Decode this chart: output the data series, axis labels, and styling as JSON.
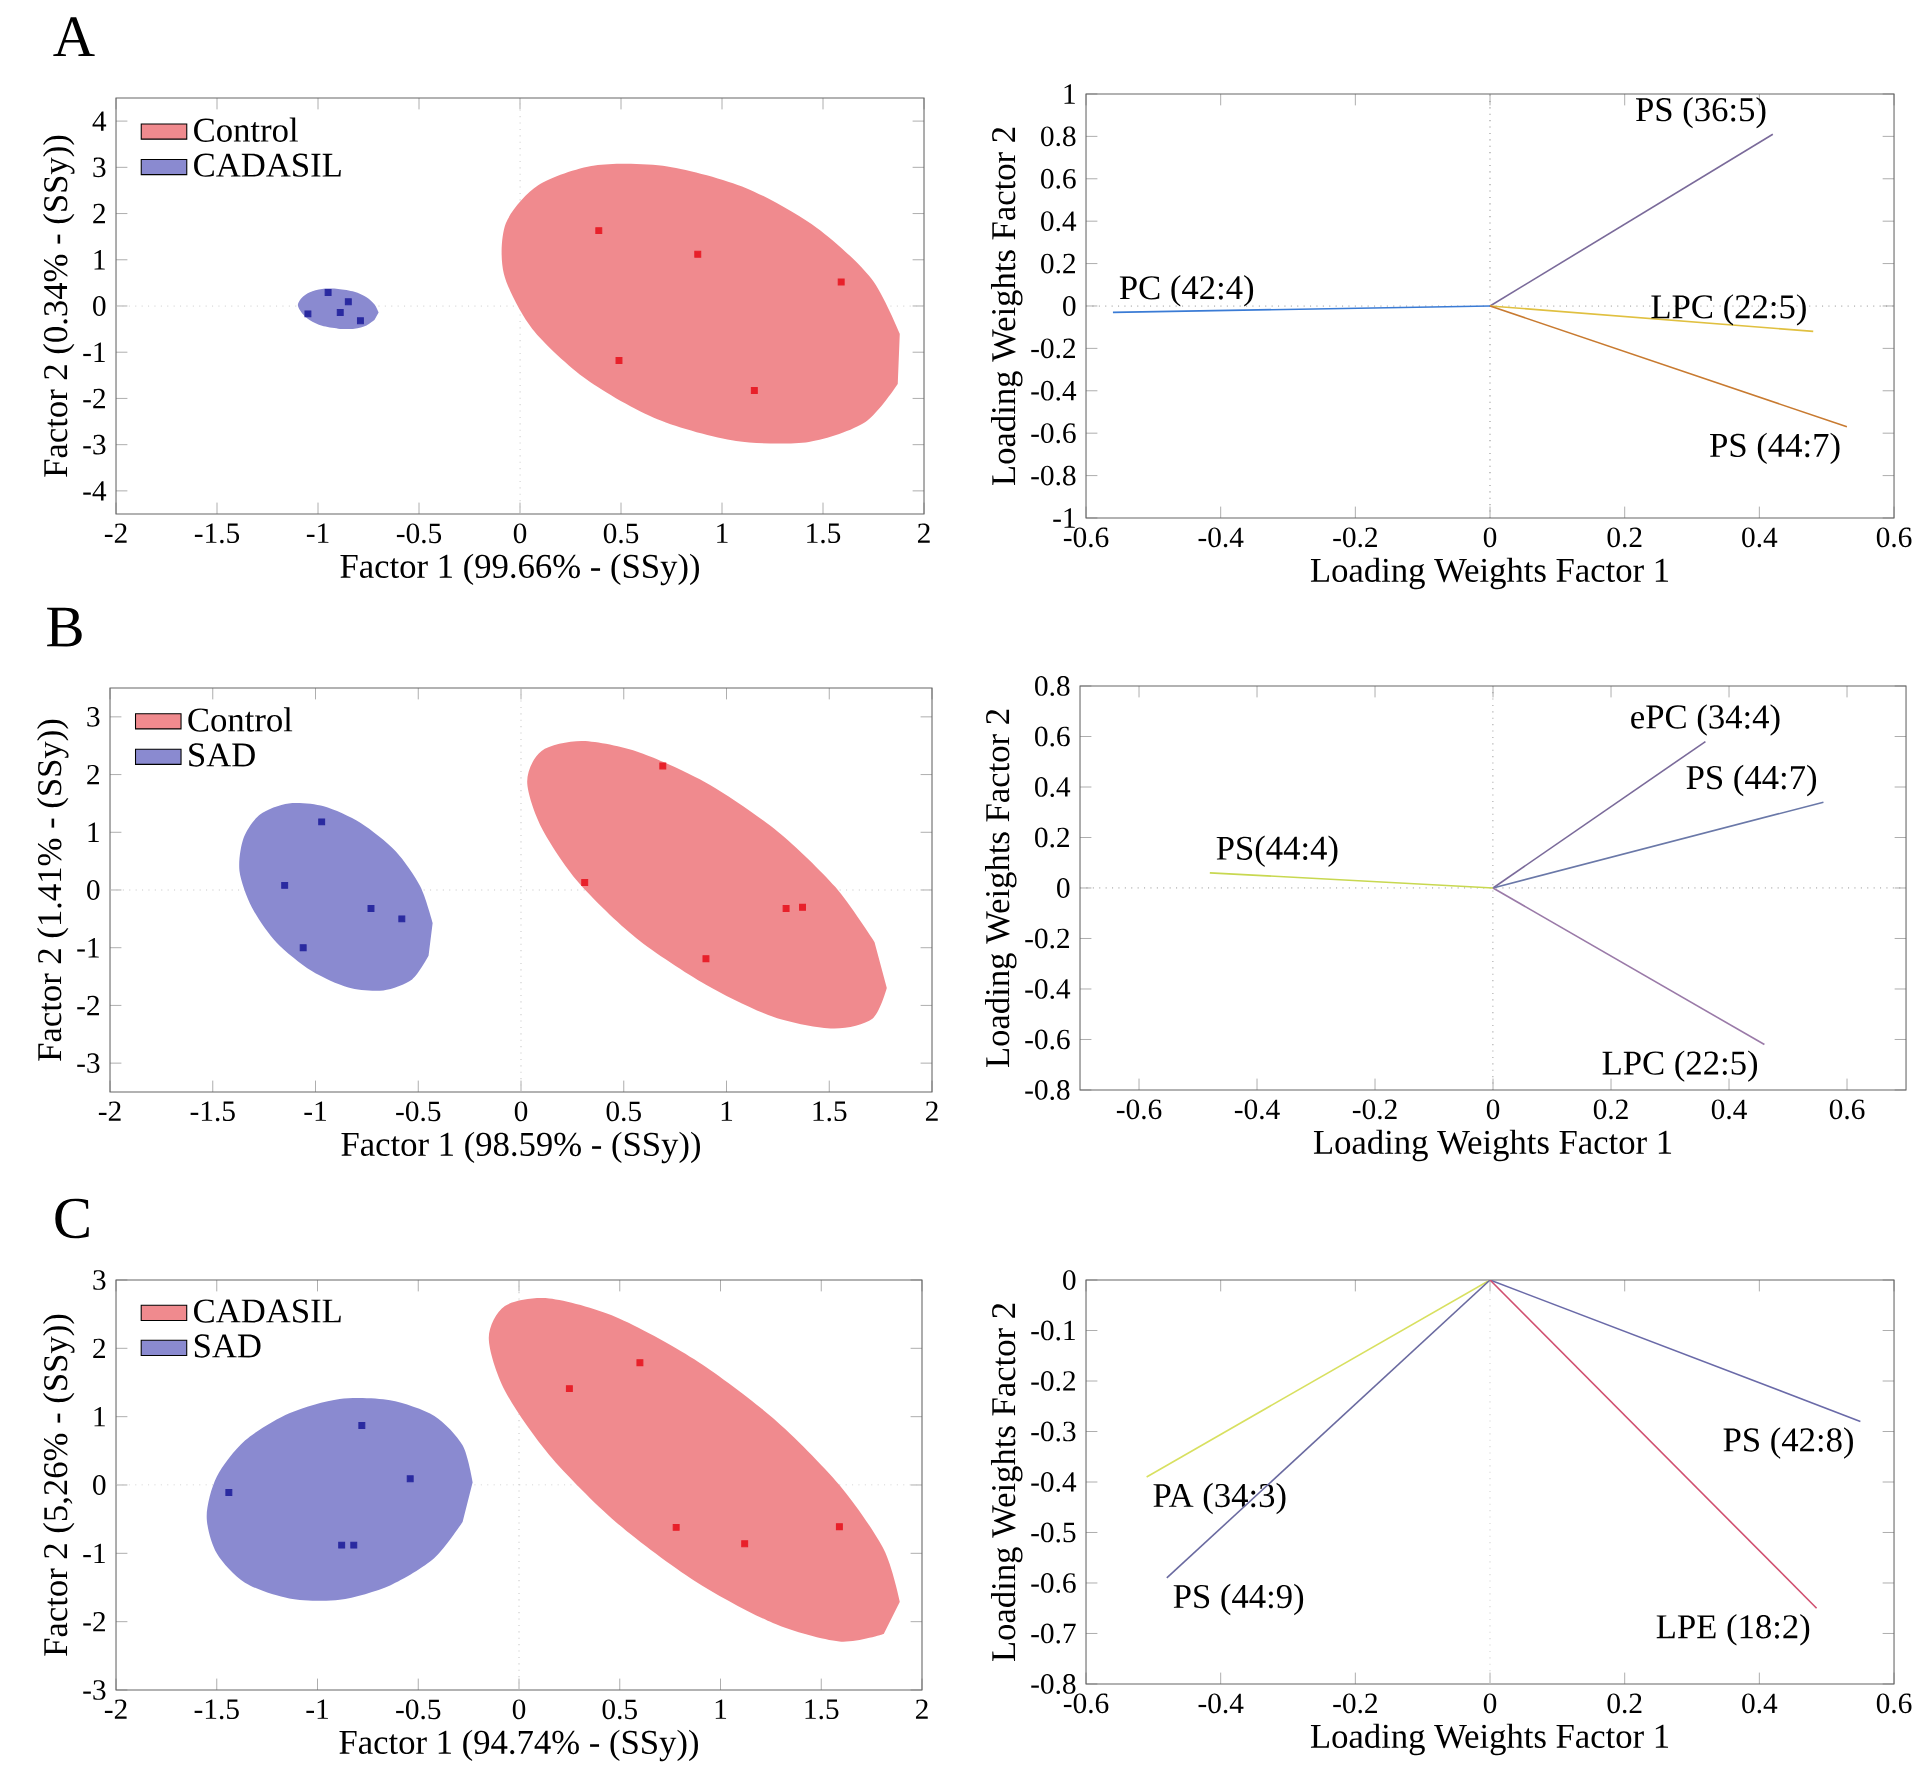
{
  "chart_data": [
    {
      "type": "scatter",
      "title": "A",
      "xlabel": "Factor 1 (99.66% - (SSy))",
      "ylabel": "Factor 2 (0.34% - (SSy))",
      "xlim": [
        -2,
        2
      ],
      "ylim": [
        -4.5,
        4.5
      ],
      "xticks": [
        -2,
        -1.5,
        -1,
        -0.5,
        0,
        0.5,
        1,
        1.5,
        2
      ],
      "yticks": [
        -4,
        -3,
        -2,
        -1,
        0,
        1,
        2,
        3,
        4
      ],
      "legend": "top left",
      "ref_lines": [
        {
          "axis": "x",
          "value": 0,
          "color": "#c8c8c8",
          "line_style": "dotted"
        },
        {
          "axis": "y",
          "value": 0,
          "color": "#c8c8c8",
          "line_style": "dotted"
        }
      ],
      "series": [
        {
          "type": "area",
          "name": "Control",
          "color": "#f08a8e",
          "x": [
            1.88,
            1.74,
            1.47,
            1.12,
            0.73,
            0.37,
            0.09,
            -0.07,
            -0.08,
            0.06,
            0.33,
            0.68,
            1.07,
            1.43,
            1.71,
            1.87
          ],
          "values": [
            -0.6,
            0.59,
            1.69,
            2.55,
            3.02,
            3.04,
            2.61,
            1.79,
            0.7,
            -0.49,
            -1.59,
            -2.45,
            -2.92,
            -2.94,
            -2.51,
            -1.69
          ]
        },
        {
          "type": "area",
          "name": "CADASIL",
          "color": "#8a8ad0",
          "x": [
            -0.7,
            -0.72,
            -0.76,
            -0.82,
            -0.9,
            -0.98,
            -1.04,
            -1.08,
            -1.1,
            -1.08,
            -1.04,
            -0.98,
            -0.9,
            -0.82,
            -0.76,
            -0.72
          ],
          "values": [
            -0.14,
            0.03,
            0.19,
            0.31,
            0.37,
            0.37,
            0.3,
            0.18,
            0.02,
            -0.15,
            -0.31,
            -0.43,
            -0.49,
            -0.49,
            -0.42,
            -0.3
          ]
        },
        {
          "type": "scatter",
          "marker": "square",
          "color": "#e8202a",
          "x": [
            0.39,
            0.88,
            1.59,
            0.49,
            1.16
          ],
          "values": [
            1.63,
            1.12,
            0.52,
            -1.18,
            -1.83
          ]
        },
        {
          "type": "scatter",
          "marker": "square",
          "color": "#2a2aa0",
          "x": [
            -0.95,
            -0.85,
            -1.05,
            -0.89,
            -0.79
          ],
          "values": [
            0.29,
            0.09,
            -0.17,
            -0.14,
            -0.32
          ]
        }
      ]
    },
    {
      "type": "line",
      "xlabel": "Loading Weights Factor 1",
      "ylabel": "Loading Weights Factor 2",
      "xlim": [
        -0.6,
        0.6
      ],
      "ylim": [
        -1,
        1
      ],
      "xticks": [
        -0.6,
        -0.4,
        -0.2,
        0,
        0.2,
        0.4,
        0.6
      ],
      "yticks": [
        -1,
        -0.8,
        -0.6,
        -0.4,
        -0.2,
        0,
        0.2,
        0.4,
        0.6,
        0.8,
        1
      ],
      "marker": "none",
      "line_style": "solid",
      "ref_lines": [
        {
          "axis": "x",
          "value": 0,
          "color": "#8a8a8a",
          "line_style": "dotted"
        },
        {
          "axis": "y",
          "value": 0,
          "color": "#8a8a8a",
          "line_style": "dotted"
        }
      ],
      "series": [
        {
          "name": "PC (42:4)",
          "color": "#3a7bd5",
          "x": [
            0,
            -0.56
          ],
          "values": [
            0,
            -0.03
          ]
        },
        {
          "name": "PS (36:5)",
          "color": "#7a6a9a",
          "x": [
            0,
            0.42
          ],
          "values": [
            0,
            0.81
          ]
        },
        {
          "name": "LPC (22:5)",
          "color": "#e0c040",
          "x": [
            0,
            0.48
          ],
          "values": [
            0,
            -0.12
          ]
        },
        {
          "name": "PS (44:7)",
          "color": "#c87a30",
          "x": [
            0,
            0.53
          ],
          "values": [
            0,
            -0.57
          ]
        }
      ]
    },
    {
      "type": "scatter",
      "title": "B",
      "xlabel": "Factor 1 (98.59% - (SSy))",
      "ylabel": "Factor 2 (1.41% - (SSy))",
      "xlim": [
        -2,
        2
      ],
      "ylim": [
        -3.5,
        3.5
      ],
      "xticks": [
        -2,
        -1.5,
        -1,
        -0.5,
        0,
        0.5,
        1,
        1.5,
        2
      ],
      "yticks": [
        -3,
        -2,
        -1,
        0,
        1,
        2,
        3
      ],
      "legend": "top left",
      "ref_lines": [
        {
          "axis": "x",
          "value": 0,
          "color": "#c8c8c8",
          "line_style": "dotted"
        },
        {
          "axis": "y",
          "value": 0,
          "color": "#c8c8c8",
          "line_style": "dotted"
        }
      ],
      "series": [
        {
          "type": "area",
          "name": "Control",
          "color": "#f08a8e",
          "x": [
            1.72,
            1.53,
            1.25,
            0.92,
            0.58,
            0.3,
            0.1,
            0.03,
            0.1,
            0.28,
            0.56,
            0.9,
            1.23,
            1.52,
            1.71,
            1.78
          ],
          "values": [
            -0.9,
            0.05,
            1.01,
            1.82,
            2.38,
            2.58,
            2.41,
            1.88,
            1.08,
            0.13,
            -0.83,
            -1.64,
            -2.2,
            -2.4,
            -2.23,
            -1.7
          ]
        },
        {
          "type": "area",
          "name": "SAD",
          "color": "#8a8ad0",
          "x": [
            -0.43,
            -0.49,
            -0.61,
            -0.78,
            -0.96,
            -1.13,
            -1.27,
            -1.35,
            -1.37,
            -1.31,
            -1.19,
            -1.02,
            -0.84,
            -0.67,
            -0.53,
            -0.45
          ],
          "values": [
            -0.57,
            0.06,
            0.67,
            1.16,
            1.45,
            1.5,
            1.31,
            0.9,
            0.33,
            -0.3,
            -0.91,
            -1.4,
            -1.69,
            -1.74,
            -1.55,
            -1.14
          ]
        },
        {
          "type": "scatter",
          "marker": "square",
          "color": "#e8202a",
          "x": [
            0.69,
            0.31,
            1.29,
            1.37,
            0.9
          ],
          "values": [
            2.15,
            0.13,
            -0.32,
            -0.3,
            -1.19
          ]
        },
        {
          "type": "scatter",
          "marker": "square",
          "color": "#2a2aa0",
          "x": [
            -0.97,
            -1.15,
            -0.73,
            -0.58,
            -1.06
          ],
          "values": [
            1.18,
            0.08,
            -0.32,
            -0.5,
            -1.0
          ]
        }
      ]
    },
    {
      "type": "line",
      "xlabel": "Loading Weights Factor 1",
      "ylabel": "Loading Weights Factor 2",
      "xlim": [
        -0.7,
        0.7
      ],
      "ylim": [
        -0.8,
        0.8
      ],
      "xticks": [
        -0.6,
        -0.4,
        -0.2,
        0,
        0.2,
        0.4,
        0.6
      ],
      "yticks": [
        -0.8,
        -0.6,
        -0.4,
        -0.2,
        0,
        0.2,
        0.4,
        0.6,
        0.8
      ],
      "marker": "none",
      "line_style": "solid",
      "ref_lines": [
        {
          "axis": "x",
          "value": 0,
          "color": "#8a8a8a",
          "line_style": "dotted"
        },
        {
          "axis": "y",
          "value": 0,
          "color": "#8a8a8a",
          "line_style": "dotted"
        }
      ],
      "series": [
        {
          "name": "PS(44:4)",
          "color": "#c8d850",
          "x": [
            0,
            -0.48
          ],
          "values": [
            0,
            0.06
          ]
        },
        {
          "name": "ePC (34:4)",
          "color": "#7a6a9a",
          "x": [
            0,
            0.36
          ],
          "values": [
            0,
            0.58
          ]
        },
        {
          "name": "PS (44:7)",
          "color": "#6a78a8",
          "x": [
            0,
            0.56
          ],
          "values": [
            0,
            0.34
          ]
        },
        {
          "name": "LPC (22:5)",
          "color": "#9a7aa8",
          "x": [
            0,
            0.46
          ],
          "values": [
            0,
            -0.62
          ]
        }
      ]
    },
    {
      "type": "scatter",
      "title": "C",
      "xlabel": "Factor 1 (94.74% - (SSy))",
      "ylabel": "Factor 2 (5,26% - (SSy))",
      "xlim": [
        -2,
        2
      ],
      "ylim": [
        -3,
        3
      ],
      "xticks": [
        -2,
        -1.5,
        -1,
        -0.5,
        0,
        0.5,
        1,
        1.5,
        2
      ],
      "yticks": [
        -3,
        -2,
        -1,
        0,
        1,
        2,
        3
      ],
      "legend": "top left",
      "ref_lines": [
        {
          "axis": "x",
          "value": 0,
          "color": "#c8c8c8",
          "line_style": "dotted"
        },
        {
          "axis": "y",
          "value": 0,
          "color": "#c8c8c8",
          "line_style": "dotted"
        }
      ],
      "series": [
        {
          "type": "area",
          "name": "CADASIL",
          "color": "#f08a8e",
          "x": [
            1.89,
            1.81,
            1.59,
            1.26,
            0.87,
            0.48,
            0.15,
            -0.07,
            -0.15,
            -0.07,
            0.15,
            0.48,
            0.87,
            1.26,
            1.59,
            1.81
          ],
          "values": [
            -1.71,
            -0.94,
            0.0,
            0.98,
            1.84,
            2.46,
            2.73,
            2.62,
            2.15,
            1.38,
            0.44,
            -0.54,
            -1.4,
            -2.02,
            -2.29,
            -2.18
          ]
        },
        {
          "type": "area",
          "name": "SAD",
          "color": "#8a8ad0",
          "x": [
            -0.23,
            -0.28,
            -0.42,
            -0.64,
            -0.89,
            -1.14,
            -1.36,
            -1.5,
            -1.55,
            -1.5,
            -1.36,
            -1.14,
            -0.89,
            -0.64,
            -0.42,
            -0.28
          ],
          "values": [
            0.04,
            0.58,
            1.01,
            1.24,
            1.26,
            1.05,
            0.65,
            0.12,
            -0.46,
            -1.0,
            -1.43,
            -1.66,
            -1.68,
            -1.47,
            -1.07,
            -0.54
          ]
        },
        {
          "type": "scatter",
          "marker": "square",
          "color": "#e8202a",
          "x": [
            0.25,
            0.6,
            0.78,
            1.12,
            1.59
          ],
          "values": [
            1.41,
            1.79,
            -0.62,
            -0.86,
            -0.61
          ]
        },
        {
          "type": "scatter",
          "marker": "square",
          "color": "#2a2aa0",
          "x": [
            -0.78,
            -0.54,
            -1.44,
            -0.88,
            -0.82
          ],
          "values": [
            0.87,
            0.09,
            -0.11,
            -0.88,
            -0.88
          ]
        }
      ]
    },
    {
      "type": "line",
      "xlabel": "Loading Weights Factor 1",
      "ylabel": "Loading Weights Factor 2",
      "xlim": [
        -0.6,
        0.6
      ],
      "ylim": [
        -0.8,
        0
      ],
      "xticks": [
        -0.6,
        -0.4,
        -0.2,
        0,
        0.2,
        0.4,
        0.6
      ],
      "yticks": [
        -0.8,
        -0.7,
        -0.6,
        -0.5,
        -0.4,
        -0.3,
        -0.2,
        -0.1,
        0
      ],
      "marker": "none",
      "line_style": "solid",
      "ref_lines": [
        {
          "axis": "x",
          "value": 0,
          "color": "#d0d0d0",
          "line_style": "dotted"
        }
      ],
      "series": [
        {
          "name": "PA (34:3)",
          "color": "#d8e060",
          "x": [
            0,
            -0.51
          ],
          "values": [
            0,
            -0.39
          ]
        },
        {
          "name": "PS (44:9)",
          "color": "#6a6aa0",
          "x": [
            0,
            -0.48
          ],
          "values": [
            0,
            -0.59
          ]
        },
        {
          "name": "PS (42:8)",
          "color": "#6a6aa8",
          "x": [
            0,
            0.55
          ],
          "values": [
            0,
            -0.28
          ]
        },
        {
          "name": "LPE (18:2)",
          "color": "#d05070",
          "x": [
            0,
            0.485
          ],
          "values": [
            0,
            -0.65
          ]
        }
      ]
    }
  ]
}
